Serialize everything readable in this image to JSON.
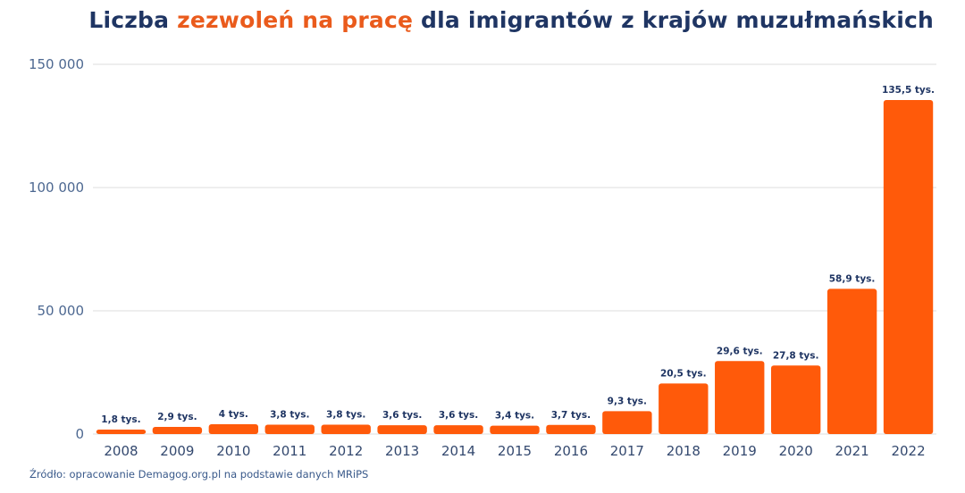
{
  "title": {
    "part1": "Liczba ",
    "part2": "zezwoleń na pracę",
    "part3": " dla imigrantów z krajów muzułmańskich"
  },
  "source": "Źródło: opracowanie Demagog.org.pl na podstawie danych MRiPS",
  "colors": {
    "bar": "#ff5a0a",
    "title": "#1f3563",
    "accent": "#ea5b1c",
    "grid": "#dcdcdc"
  },
  "chart_data": {
    "type": "bar",
    "categories": [
      "2008",
      "2009",
      "2010",
      "2011",
      "2012",
      "2013",
      "2014",
      "2015",
      "2016",
      "2017",
      "2018",
      "2019",
      "2020",
      "2021",
      "2022"
    ],
    "values": [
      1800,
      2900,
      4000,
      3800,
      3800,
      3600,
      3600,
      3400,
      3700,
      9300,
      20500,
      29600,
      27800,
      58900,
      135500
    ],
    "data_labels": [
      "1,8 tys.",
      "2,9 tys.",
      "4 tys.",
      "3,8 tys.",
      "3,8 tys.",
      "3,6 tys.",
      "3,6 tys.",
      "3,4 tys.",
      "3,7 tys.",
      "9,3 tys.",
      "20,5 tys.",
      "29,6 tys.",
      "27,8 tys.",
      "58,9 tys.",
      "135,5 tys."
    ],
    "yticks": [
      0,
      50000,
      100000,
      150000
    ],
    "ytick_labels": [
      "0",
      "50 000",
      "100 000",
      "150 000"
    ],
    "ylim": [
      0,
      150000
    ],
    "grid": true,
    "legend": "none"
  }
}
